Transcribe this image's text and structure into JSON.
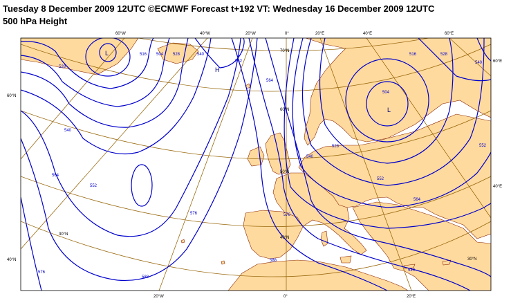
{
  "header": {
    "line1": "Tuesday 8 December 2009 12UTC ©ECMWF Forecast t+192 VT: Wednesday 16 December 2009 12UTC",
    "line2": "500 hPa Height"
  },
  "colors": {
    "land": "#FFDA9E",
    "sea": "#FFFFFF",
    "contour": "#0000CC",
    "graticule": "#9A6A10",
    "coast": "#8B2500"
  },
  "graticule_labels": {
    "top": [
      "60°W",
      "40°W",
      "20°W",
      "0°",
      "20°E",
      "40°E",
      "60°E"
    ],
    "left": [
      "60°N",
      "40°N"
    ],
    "right": [
      "60°E",
      "40°E"
    ],
    "bottom": [
      "20°W",
      "0°",
      "20°E"
    ],
    "inner": [
      "70°N",
      "60°N",
      "50°N",
      "40°N",
      "30°N",
      "30°N"
    ]
  },
  "pressure_centres": {
    "low_west": "L",
    "high_north": "H",
    "low_east": "L"
  },
  "contour_labels": [
    "528",
    "540",
    "552",
    "564",
    "576",
    "516",
    "504",
    "528",
    "540",
    "552",
    "564",
    "576",
    "588",
    "528",
    "540",
    "552",
    "516",
    "504",
    "528",
    "540",
    "552",
    "564",
    "576",
    "588",
    "540",
    "552",
    "564",
    "576",
    "588",
    "564"
  ]
}
